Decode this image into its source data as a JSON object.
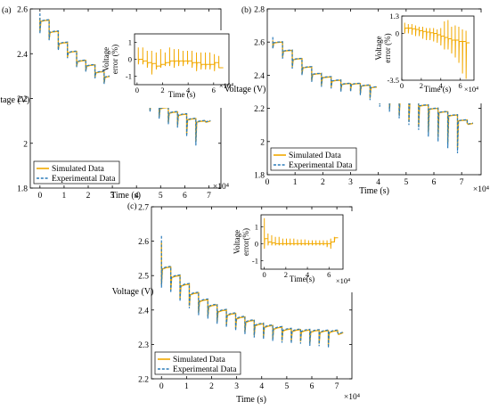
{
  "chart_data": [
    {
      "type": "line",
      "panel_label": "(a)",
      "xlabel": "Time (s)",
      "ylabel": "Voltage (V)",
      "x_multiplier": "×10⁴",
      "xlim": [
        -0.4,
        7.5
      ],
      "ylim": [
        1.8,
        2.6
      ],
      "xticks": [
        "0",
        "1",
        "2",
        "3",
        "4",
        "5",
        "6",
        "7"
      ],
      "yticks": [
        "1.8",
        "2",
        "2.2",
        "2.4",
        "2.6"
      ],
      "legend": {
        "position": "bottom-left",
        "entries": [
          "Simulated Data",
          "Experimental Data"
        ]
      },
      "series": [
        {
          "name": "Simulated Data",
          "style": "solid",
          "color": "#f2a900"
        },
        {
          "name": "Experimental Data",
          "style": "dashed",
          "color": "#2b7bb9"
        }
      ],
      "plateau_voltages": [
        2.55,
        2.5,
        2.45,
        2.41,
        2.37,
        2.35,
        2.32,
        2.3,
        2.27,
        2.25,
        2.22,
        2.2,
        2.18,
        2.16,
        2.14,
        2.13,
        2.11,
        2.1,
        2.1
      ],
      "step_start_x": 0,
      "step_duration": 0.38,
      "dip_depths": [
        0.06,
        0.04,
        0.035,
        0.03,
        0.03,
        0.03,
        0.03,
        0.035,
        0.03,
        0.035,
        0.035,
        0.04,
        0.04,
        0.05,
        0.055,
        0.06,
        0.08,
        0.11,
        0.0
      ],
      "inset": {
        "xlabel": "Time (s)",
        "ylabel": "Voltage error (%)",
        "x_multiplier": "×10⁴",
        "xlim": [
          -0.2,
          7.2
        ],
        "ylim": [
          -1.5,
          1.5
        ],
        "xticks": [
          "0",
          "2",
          "4",
          "6"
        ],
        "yticks": [
          "-1",
          "0",
          "1"
        ],
        "baseline_values": [
          0.0,
          -0.1,
          -0.2,
          -0.25,
          -0.4,
          -0.3,
          -0.2,
          -0.1,
          -0.1,
          -0.1,
          -0.1,
          -0.1,
          -0.2,
          -0.2,
          -0.3,
          -0.3,
          -0.3,
          -0.2,
          -0.5
        ],
        "spike_values": [
          0.7,
          0.7,
          0.5,
          0.5,
          0.4,
          0.6,
          0.4,
          0.7,
          0.6,
          0.6,
          0.5,
          0.5,
          0.5,
          0.4,
          0.4,
          0.4,
          0.4,
          0.3,
          0.2
        ],
        "dip_values": [
          -0.3,
          -0.3,
          -0.5,
          -0.9,
          -0.6,
          -0.5,
          -0.4,
          -0.4,
          -0.5,
          -0.4,
          -0.4,
          -0.3,
          -0.5,
          -0.7,
          -0.6,
          -0.6,
          -0.6,
          -0.7,
          -0.5
        ]
      }
    },
    {
      "type": "line",
      "panel_label": "(b)",
      "xlabel": "Time (s)",
      "ylabel": "Voltage (V)",
      "x_multiplier": "×10⁴",
      "xlim": [
        0,
        7.7
      ],
      "ylim": [
        1.8,
        2.8
      ],
      "xticks": [
        "0",
        "1",
        "2",
        "3",
        "4",
        "5",
        "6",
        "7"
      ],
      "yticks": [
        "1.8",
        "2",
        "2.2",
        "2.4",
        "2.6",
        "2.8"
      ],
      "legend": {
        "position": "bottom-left",
        "entries": [
          "Simulated Data",
          "Experimental Data"
        ]
      },
      "series": [
        {
          "name": "Simulated Data",
          "style": "solid",
          "color": "#f2a900"
        },
        {
          "name": "Experimental Data",
          "style": "dashed",
          "color": "#2b7bb9"
        }
      ],
      "plateau_voltages": [
        2.6,
        2.55,
        2.5,
        2.45,
        2.41,
        2.39,
        2.37,
        2.35,
        2.35,
        2.34,
        2.33,
        2.31,
        2.28,
        2.26,
        2.24,
        2.22,
        2.2,
        2.18,
        2.16,
        2.13,
        2.11
      ],
      "step_start_x": 0.2,
      "step_duration": 0.35,
      "dip_depths": [
        0.04,
        0.05,
        0.06,
        0.05,
        0.05,
        0.06,
        0.05,
        0.05,
        0.05,
        0.06,
        0.08,
        0.1,
        0.1,
        0.12,
        0.14,
        0.15,
        0.17,
        0.18,
        0.2,
        0.2,
        0.0
      ],
      "inset": {
        "xlabel": "Time (s)",
        "ylabel": "Voltage error (%)",
        "x_multiplier": "×10⁴",
        "xlim": [
          0,
          7.4
        ],
        "ylim": [
          -3.5,
          1.3
        ],
        "xticks": [
          "0",
          "2",
          "4",
          "6"
        ],
        "yticks": [
          "-3.5",
          "0",
          "1.3"
        ],
        "baseline_values": [
          0.4,
          0.4,
          0.35,
          0.3,
          0.2,
          0.15,
          0.1,
          0.05,
          0.0,
          -0.1,
          -0.2,
          -0.3,
          -0.4,
          -0.5,
          -0.5,
          -0.6,
          -0.6,
          -0.7
        ],
        "spike_values": [
          0.8,
          0.7,
          0.7,
          0.6,
          0.5,
          0.5,
          0.4,
          0.4,
          0.4,
          0.3,
          0.4,
          0.9,
          1.0,
          0.5,
          0.6,
          0.5,
          0.3,
          0.2
        ],
        "dip_values": [
          0.0,
          0.0,
          -0.1,
          -0.2,
          -0.2,
          -0.4,
          -0.5,
          -0.5,
          -0.6,
          -0.7,
          -0.9,
          -1.2,
          -1.2,
          -1.5,
          -1.8,
          -2.2,
          -3.0,
          -3.4
        ]
      }
    },
    {
      "type": "line",
      "panel_label": "(c)",
      "xlabel": "Time (s)",
      "ylabel": "Voltage (V)",
      "x_multiplier": "×10⁴",
      "xlim": [
        -0.4,
        7.6
      ],
      "ylim": [
        2.2,
        2.7
      ],
      "xticks": [
        "0",
        "1",
        "2",
        "3",
        "4",
        "5",
        "6",
        "7"
      ],
      "yticks": [
        "2.2",
        "2.3",
        "2.4",
        "2.5",
        "2.6",
        "2.7"
      ],
      "legend": {
        "position": "bottom-left",
        "entries": [
          "Simulated Data",
          "Experimental Data"
        ]
      },
      "series": [
        {
          "name": "Simulated Data",
          "style": "solid",
          "color": "#f2a900"
        },
        {
          "name": "Experimental Data",
          "style": "dashed",
          "color": "#2b7bb9"
        }
      ],
      "plateau_voltages": [
        2.525,
        2.5,
        2.475,
        2.45,
        2.43,
        2.415,
        2.4,
        2.39,
        2.38,
        2.37,
        2.36,
        2.355,
        2.35,
        2.345,
        2.343,
        2.342,
        2.341,
        2.34,
        2.34,
        2.335
      ],
      "step_start_x": 0,
      "step_duration": 0.37,
      "dip_depths": [
        0.06,
        0.05,
        0.05,
        0.045,
        0.045,
        0.04,
        0.04,
        0.04,
        0.04,
        0.04,
        0.04,
        0.04,
        0.04,
        0.04,
        0.04,
        0.04,
        0.045,
        0.045,
        0.05,
        0.0
      ],
      "start_peak": 2.615,
      "inset": {
        "xlabel": "Time(s)",
        "ylabel": "Voltage error(%)",
        "x_multiplier": "×10⁴",
        "xlim": [
          -0.3,
          7.3
        ],
        "ylim": [
          -1.5,
          1.7
        ],
        "xticks": [
          "0",
          "2",
          "4",
          "6"
        ],
        "yticks": [
          "-1",
          "0",
          "1"
        ],
        "baseline_values": [
          0.3,
          0.1,
          0.05,
          0.0,
          0.0,
          0.0,
          0.0,
          0.0,
          0.0,
          0.0,
          0.0,
          0.0,
          0.0,
          0.0,
          0.0,
          0.0,
          0.0,
          0.0,
          0.1,
          0.35
        ],
        "spike_values": [
          1.5,
          0.6,
          0.5,
          0.4,
          0.4,
          0.3,
          0.3,
          0.3,
          0.3,
          0.25,
          0.25,
          0.25,
          0.2,
          0.2,
          0.2,
          0.2,
          0.2,
          0.2,
          0.3,
          0.4
        ],
        "dip_values": [
          -0.3,
          -0.1,
          -0.1,
          -0.1,
          -0.1,
          -0.1,
          -0.1,
          -0.1,
          -0.1,
          -0.1,
          -0.1,
          -0.1,
          -0.1,
          -0.1,
          -0.1,
          -0.1,
          -0.1,
          -0.2,
          -0.3,
          0.1
        ]
      }
    }
  ]
}
